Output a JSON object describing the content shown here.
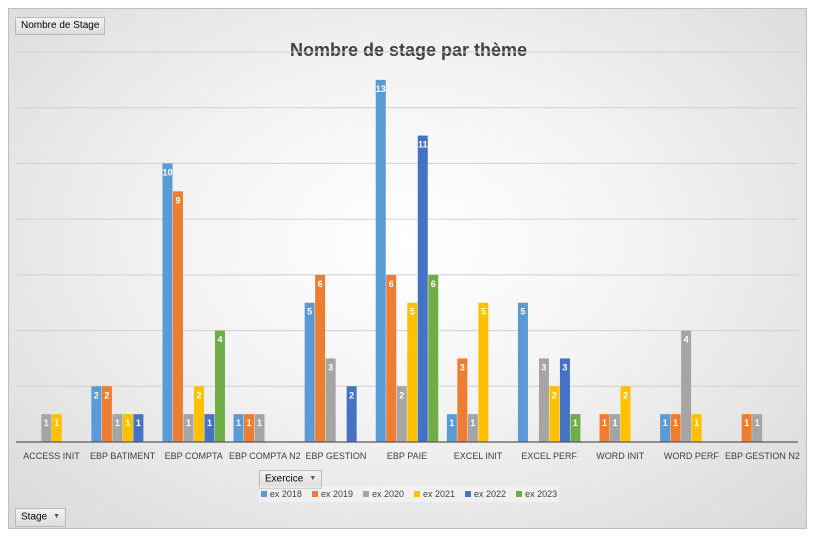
{
  "pivot": {
    "value_field": "Nombre de Stage",
    "axis_field": "Stage",
    "legend_field": "Exercice"
  },
  "chart_data": {
    "type": "bar",
    "title": "Nombre de stage par thème",
    "xlabel": "",
    "ylabel": "",
    "ylim": [
      0,
      14
    ],
    "grid": true,
    "legend_position": "bottom",
    "categories": [
      "ACCESS INIT",
      "EBP BATIMENT",
      "EBP COMPTA",
      "EBP COMPTA N2",
      "EBP GESTION",
      "EBP PAIE",
      "EXCEL INIT",
      "EXCEL PERF",
      "WORD INIT",
      "WORD PERF",
      "EBP GESTION N2"
    ],
    "series": [
      {
        "name": "ex 2018",
        "color": "#5b9bd5",
        "values": [
          null,
          2,
          10,
          1,
          5,
          13,
          1,
          5,
          null,
          1,
          null
        ]
      },
      {
        "name": "ex 2019",
        "color": "#ed7d31",
        "values": [
          null,
          2,
          9,
          1,
          6,
          6,
          3,
          null,
          1,
          1,
          1
        ]
      },
      {
        "name": "ex 2020",
        "color": "#a5a5a5",
        "values": [
          1,
          1,
          1,
          1,
          3,
          2,
          1,
          3,
          1,
          4,
          1
        ]
      },
      {
        "name": "ex 2021",
        "color": "#ffc000",
        "values": [
          1,
          1,
          2,
          null,
          null,
          5,
          5,
          2,
          2,
          1,
          null
        ]
      },
      {
        "name": "ex 2022",
        "color": "#4472c4",
        "values": [
          null,
          1,
          1,
          null,
          2,
          11,
          null,
          3,
          null,
          null,
          null
        ]
      },
      {
        "name": "ex 2023",
        "color": "#70ad47",
        "values": [
          null,
          null,
          4,
          null,
          null,
          6,
          null,
          1,
          null,
          null,
          null
        ]
      }
    ]
  }
}
